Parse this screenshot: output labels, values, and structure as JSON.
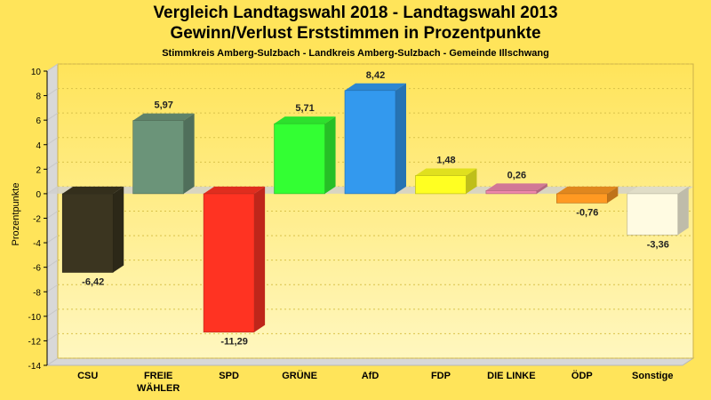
{
  "chart_data": {
    "type": "bar",
    "title": "Vergleich Landtagswahl 2018 - Landtagswahl 2013",
    "subtitle": "Gewinn/Verlust Erststimmen in Prozentpunkte",
    "subsubtitle": "Stimmkreis Amberg-Sulzbach - Landkreis Amberg-Sulzbach - Gemeinde Illschwang",
    "ylabel": "Prozentpunkte",
    "xlabel": "",
    "ylim": [
      -14,
      10
    ],
    "yticks": [
      10,
      8,
      6,
      4,
      2,
      0,
      -2,
      -4,
      -6,
      -8,
      -10,
      -12,
      -14
    ],
    "grid": true,
    "legend": "none",
    "categories": [
      {
        "name": "CSU",
        "lines": [
          "CSU"
        ],
        "value": -6.42,
        "label": "-6,42",
        "color": "#3b3520"
      },
      {
        "name": "FREIE WÄHLER",
        "lines": [
          "FREIE",
          "WÄHLER"
        ],
        "value": 5.97,
        "label": "5,97",
        "color": "#6b9479"
      },
      {
        "name": "SPD",
        "lines": [
          "SPD"
        ],
        "value": -11.29,
        "label": "-11,29",
        "color": "#ff3322"
      },
      {
        "name": "GRÜNE",
        "lines": [
          "GRÜNE"
        ],
        "value": 5.71,
        "label": "5,71",
        "color": "#33ff33"
      },
      {
        "name": "AfD",
        "lines": [
          "AfD"
        ],
        "value": 8.42,
        "label": "8,42",
        "color": "#3399ee"
      },
      {
        "name": "FDP",
        "lines": [
          "FDP"
        ],
        "value": 1.48,
        "label": "1,48",
        "color": "#ffff22"
      },
      {
        "name": "DIE LINKE",
        "lines": [
          "DIE LINKE"
        ],
        "value": 0.26,
        "label": "0,26",
        "color": "#ee88aa"
      },
      {
        "name": "ÖDP",
        "lines": [
          "ÖDP"
        ],
        "value": -0.76,
        "label": "-0,76",
        "color": "#ff9922"
      },
      {
        "name": "Sonstige",
        "lines": [
          "Sonstige"
        ],
        "value": -3.36,
        "label": "-3,36",
        "color": "#fffbe2"
      }
    ],
    "colors": {
      "background": "#ffe45a",
      "plot_top": "#ffe45a",
      "plot_bottom": "#fff6b8",
      "side_wall": "#d8d8d8",
      "grid": "#d9c24a"
    }
  }
}
